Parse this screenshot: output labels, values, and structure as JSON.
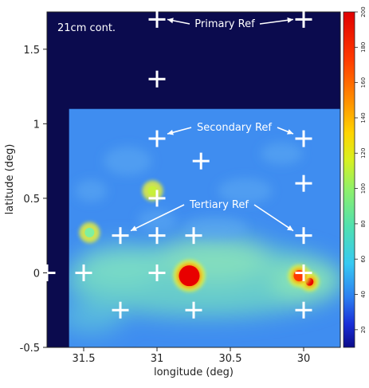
{
  "chart_data": {
    "type": "heatmap",
    "panel_label": "21cm cont.",
    "xlabel": "longitude (deg)",
    "ylabel": "latitude (deg)",
    "xlim": [
      31.75,
      29.75
    ],
    "ylim": [
      -0.5,
      1.75
    ],
    "x_ticks": [
      31.5,
      31,
      30.5,
      30
    ],
    "x_tick_labels": [
      "31.5",
      "31",
      "30.5",
      "30"
    ],
    "y_ticks": [
      -0.5,
      0,
      0.5,
      1,
      1.5
    ],
    "y_tick_labels": [
      "-0.5",
      "0",
      "0.5",
      "1",
      "1.5"
    ],
    "colorbar": {
      "min": 10,
      "max": 200,
      "tick_values": [
        20,
        40,
        60,
        80,
        100,
        120,
        140,
        160,
        180,
        200
      ],
      "tick_labels": [
        "20",
        "40",
        "60",
        "80",
        "100",
        "120",
        "140",
        "160",
        "180",
        "200"
      ]
    },
    "coverage_region": {
      "x_from": 31.6,
      "x_to": 29.75,
      "y_from": -0.5,
      "y_to": 1.1
    },
    "bright_sources": [
      {
        "x": 30.78,
        "y": -0.02,
        "level": 200
      },
      {
        "x": 29.96,
        "y": -0.06,
        "level": 190
      },
      {
        "x": 30.03,
        "y": -0.02,
        "level": 150
      },
      {
        "x": 31.03,
        "y": 0.55,
        "level": 60
      },
      {
        "x": 31.46,
        "y": 0.27,
        "level": 40
      }
    ],
    "reference_markers": [
      {
        "x": 31,
        "y": 1.7
      },
      {
        "x": 30,
        "y": 1.7
      },
      {
        "x": 31,
        "y": 1.3
      },
      {
        "x": 31,
        "y": 0.9
      },
      {
        "x": 30,
        "y": 0.9
      },
      {
        "x": 30.7,
        "y": 0.75
      },
      {
        "x": 30,
        "y": 0.6
      },
      {
        "x": 31,
        "y": 0.5
      },
      {
        "x": 31.25,
        "y": 0.25
      },
      {
        "x": 31,
        "y": 0.25
      },
      {
        "x": 30.75,
        "y": 0.25
      },
      {
        "x": 30,
        "y": 0.25
      },
      {
        "x": 31.75,
        "y": 0
      },
      {
        "x": 31.5,
        "y": 0
      },
      {
        "x": 31,
        "y": 0
      },
      {
        "x": 30,
        "y": 0
      },
      {
        "x": 31.25,
        "y": -0.25
      },
      {
        "x": 30.75,
        "y": -0.25
      },
      {
        "x": 30,
        "y": -0.25
      }
    ],
    "annotations": [
      {
        "text": "Primary Ref",
        "arrow_targets": [
          {
            "x": 31,
            "y": 1.7
          },
          {
            "x": 30,
            "y": 1.7
          }
        ]
      },
      {
        "text": "Secondary Ref",
        "arrow_targets": [
          {
            "x": 31,
            "y": 0.9
          },
          {
            "x": 30,
            "y": 0.9
          }
        ]
      },
      {
        "text": "Tertiary Ref",
        "arrow_targets": [
          {
            "x": 31.25,
            "y": 0.25
          },
          {
            "x": 30,
            "y": 0.25
          }
        ]
      }
    ],
    "colors": {
      "background_no_data": "#0b0b4e",
      "diffuse_emission": "#3f8df0",
      "plane_emission": "#6cd3c8",
      "marker": "#ffffff",
      "annotation_text": "#ffffff"
    }
  }
}
